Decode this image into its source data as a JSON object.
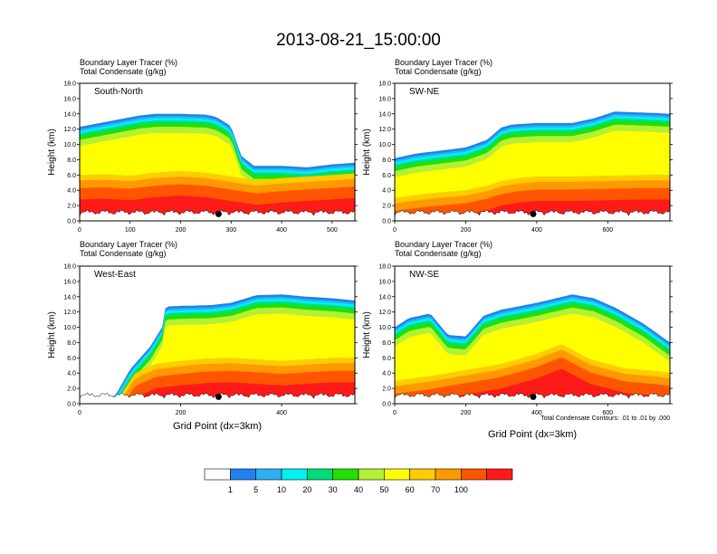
{
  "figure": {
    "title": "2013-08-21_15:00:00",
    "xlabel": "Grid Point (dx=3km)",
    "contour_note": "Total Condensate Contours: .01 to .01 by .000"
  },
  "chart_data": {
    "type": "heatmap",
    "variables": [
      "Boundary Layer Tracer",
      "Total Condensate"
    ],
    "units": [
      "(%)",
      "(g/kg)"
    ],
    "colorbar": {
      "levels": [
        "1",
        "5",
        "10",
        "20",
        "30",
        "40",
        "50",
        "60",
        "70",
        "100"
      ],
      "colors": [
        "#ffffff",
        "#1e82f0",
        "#2ab0f5",
        "#00f0f0",
        "#00dc78",
        "#22e000",
        "#b4f033",
        "#ffff00",
        "#ffcc00",
        "#ff9900",
        "#ff5500",
        "#ff1a1a"
      ]
    },
    "panels": [
      {
        "name": "South-North",
        "line1": "Boundary Layer Tracer   (%)",
        "line2": "Total Condensate   (g/kg)",
        "ylabel": "Height (km)",
        "ylim": [
          0,
          18
        ],
        "yticks": [
          "0.0",
          "2.0",
          "4.0",
          "6.0",
          "8.0",
          "10.0",
          "12.0",
          "14.0",
          "16.0",
          "18.0"
        ],
        "xlim": [
          0,
          545
        ],
        "xticks": [
          0,
          100,
          200,
          300,
          400,
          500
        ],
        "station_x": 275,
        "boundary_layer_top": [
          [
            0,
            6.0
          ],
          [
            50,
            6.1
          ],
          [
            100,
            5.9
          ],
          [
            150,
            6.3
          ],
          [
            200,
            6.5
          ],
          [
            250,
            6.3
          ],
          [
            300,
            5.8
          ],
          [
            350,
            5.3
          ],
          [
            400,
            5.6
          ],
          [
            450,
            5.8
          ],
          [
            500,
            6.0
          ],
          [
            545,
            6.2
          ]
        ],
        "cloud_top": [
          [
            0,
            12.3
          ],
          [
            40,
            12.8
          ],
          [
            80,
            13.3
          ],
          [
            120,
            13.8
          ],
          [
            150,
            14.0
          ],
          [
            200,
            14.0
          ],
          [
            250,
            13.9
          ],
          [
            270,
            13.6
          ],
          [
            295,
            12.6
          ],
          [
            300,
            12.3
          ],
          [
            320,
            8.5
          ],
          [
            345,
            7.2
          ],
          [
            400,
            7.2
          ],
          [
            450,
            7.0
          ],
          [
            500,
            7.4
          ],
          [
            545,
            7.6
          ]
        ]
      },
      {
        "name": "SW-NE",
        "line1": "Boundary Layer Tracer   (%)",
        "line2": "Total Condensate   (g/kg)",
        "ylabel": "Height (km)",
        "ylim": [
          0,
          18
        ],
        "yticks": [
          "0.0",
          "2.0",
          "4.0",
          "6.0",
          "8.0",
          "10.0",
          "12.0",
          "14.0",
          "16.0",
          "18.0"
        ],
        "xlim": [
          0,
          775
        ],
        "xticks": [
          0,
          200,
          400,
          600
        ],
        "station_x": 390,
        "boundary_layer_top": [
          [
            0,
            3.0
          ],
          [
            100,
            3.6
          ],
          [
            200,
            4.0
          ],
          [
            260,
            4.6
          ],
          [
            300,
            5.2
          ],
          [
            350,
            5.6
          ],
          [
            400,
            5.8
          ],
          [
            500,
            5.8
          ],
          [
            600,
            5.9
          ],
          [
            700,
            6.0
          ],
          [
            775,
            6.0
          ]
        ],
        "cloud_top": [
          [
            0,
            8.2
          ],
          [
            60,
            8.8
          ],
          [
            130,
            9.2
          ],
          [
            200,
            9.6
          ],
          [
            260,
            10.6
          ],
          [
            300,
            12.2
          ],
          [
            330,
            12.6
          ],
          [
            400,
            12.8
          ],
          [
            500,
            12.8
          ],
          [
            560,
            13.4
          ],
          [
            620,
            14.3
          ],
          [
            680,
            14.2
          ],
          [
            740,
            14.1
          ],
          [
            775,
            14.0
          ]
        ]
      },
      {
        "name": "West-East",
        "line1": "Boundary Layer Tracer   (%)",
        "line2": "Total Condensate   (g/kg)",
        "ylabel": "Height (km)",
        "ylim": [
          0,
          18
        ],
        "yticks": [
          "0.0",
          "2.0",
          "4.0",
          "6.0",
          "8.0",
          "10.0",
          "12.0",
          "14.0",
          "16.0",
          "18.0"
        ],
        "xlim": [
          0,
          545
        ],
        "xticks": [
          0,
          200,
          400
        ],
        "station_x": 275,
        "boundary_layer_top": [
          [
            0,
            0.7
          ],
          [
            50,
            0.8
          ],
          [
            80,
            1.0
          ],
          [
            110,
            4.0
          ],
          [
            150,
            5.2
          ],
          [
            200,
            5.6
          ],
          [
            250,
            5.9
          ],
          [
            300,
            6.0
          ],
          [
            400,
            5.6
          ],
          [
            450,
            5.8
          ],
          [
            500,
            6.0
          ],
          [
            545,
            6.0
          ]
        ],
        "cloud_top": [
          [
            0,
            0.7
          ],
          [
            70,
            1.0
          ],
          [
            100,
            4.5
          ],
          [
            140,
            7.5
          ],
          [
            165,
            10.2
          ],
          [
            170,
            12.7
          ],
          [
            200,
            12.8
          ],
          [
            260,
            12.9
          ],
          [
            300,
            13.2
          ],
          [
            350,
            14.2
          ],
          [
            400,
            14.3
          ],
          [
            450,
            14.0
          ],
          [
            500,
            13.8
          ],
          [
            545,
            13.5
          ]
        ]
      },
      {
        "name": "NW-SE",
        "line1": "Boundary Layer Tracer   (%)",
        "line2": "Total Condensate   (g/kg)",
        "ylabel": "Height (km)",
        "ylim": [
          0,
          18
        ],
        "yticks": [
          "0.0",
          "2.0",
          "4.0",
          "6.0",
          "8.0",
          "10.0",
          "12.0",
          "14.0",
          "16.0",
          "18.0"
        ],
        "xlim": [
          0,
          775
        ],
        "xticks": [
          0,
          200,
          400,
          600
        ],
        "station_x": 390,
        "boundary_layer_top": [
          [
            0,
            3.0
          ],
          [
            100,
            3.6
          ],
          [
            200,
            4.4
          ],
          [
            300,
            5.2
          ],
          [
            400,
            6.5
          ],
          [
            470,
            7.8
          ],
          [
            550,
            5.8
          ],
          [
            650,
            4.6
          ],
          [
            750,
            4.2
          ],
          [
            775,
            4.0
          ]
        ],
        "cloud_top": [
          [
            0,
            10.0
          ],
          [
            40,
            11.2
          ],
          [
            100,
            11.8
          ],
          [
            150,
            9.0
          ],
          [
            200,
            8.8
          ],
          [
            250,
            11.5
          ],
          [
            300,
            12.3
          ],
          [
            400,
            13.2
          ],
          [
            500,
            14.3
          ],
          [
            560,
            13.8
          ],
          [
            620,
            12.6
          ],
          [
            700,
            10.5
          ],
          [
            775,
            8.0
          ]
        ]
      }
    ]
  }
}
